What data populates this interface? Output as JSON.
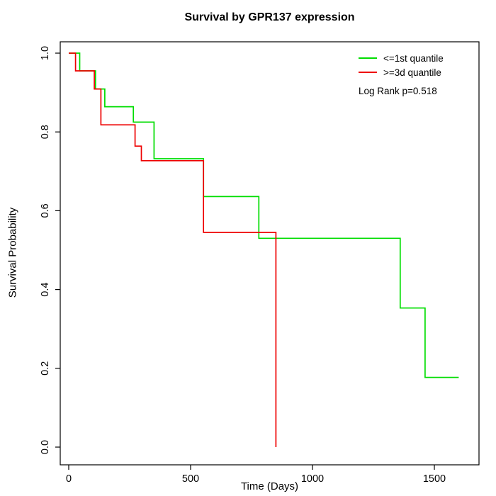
{
  "chart_data": {
    "type": "line",
    "subtype": "kaplan-meier-step",
    "title": "Survival by GPR137 expression",
    "xlabel": "Time (Days)",
    "ylabel": "Survival Probability",
    "xlim": [
      0,
      1600
    ],
    "ylim": [
      0.0,
      1.0
    ],
    "grid": false,
    "legend_position": "top-right-inside",
    "annotation": "Log Rank p=0.518",
    "xticks": [
      0,
      500,
      1000,
      1500
    ],
    "xtick_labels": [
      "0",
      "500",
      "1000",
      "1500"
    ],
    "yticks": [
      0.0,
      0.2,
      0.4,
      0.6,
      0.8,
      1.0
    ],
    "ytick_labels": [
      "0.0",
      "0.2",
      "0.4",
      "0.6",
      "0.8",
      "1.0"
    ],
    "axis_color": "#000000",
    "series": [
      {
        "name": "<=1st quantile",
        "color": "#00dd00",
        "points": [
          [
            0,
            1.0
          ],
          [
            45,
            1.0
          ],
          [
            45,
            0.955
          ],
          [
            110,
            0.955
          ],
          [
            110,
            0.909
          ],
          [
            148,
            0.909
          ],
          [
            148,
            0.864
          ],
          [
            265,
            0.864
          ],
          [
            265,
            0.825
          ],
          [
            350,
            0.825
          ],
          [
            350,
            0.732
          ],
          [
            553,
            0.732
          ],
          [
            553,
            0.636
          ],
          [
            780,
            0.636
          ],
          [
            780,
            0.53
          ],
          [
            1360,
            0.53
          ],
          [
            1360,
            0.353
          ],
          [
            1462,
            0.353
          ],
          [
            1462,
            0.177
          ],
          [
            1600,
            0.177
          ]
        ]
      },
      {
        "name": ">=3d quantile",
        "color": "#ee0000",
        "points": [
          [
            0,
            1.0
          ],
          [
            28,
            1.0
          ],
          [
            28,
            0.955
          ],
          [
            105,
            0.955
          ],
          [
            105,
            0.909
          ],
          [
            132,
            0.909
          ],
          [
            132,
            0.818
          ],
          [
            272,
            0.818
          ],
          [
            272,
            0.764
          ],
          [
            298,
            0.764
          ],
          [
            298,
            0.727
          ],
          [
            553,
            0.727
          ],
          [
            553,
            0.545
          ],
          [
            850,
            0.545
          ],
          [
            850,
            0.0
          ]
        ]
      }
    ]
  }
}
